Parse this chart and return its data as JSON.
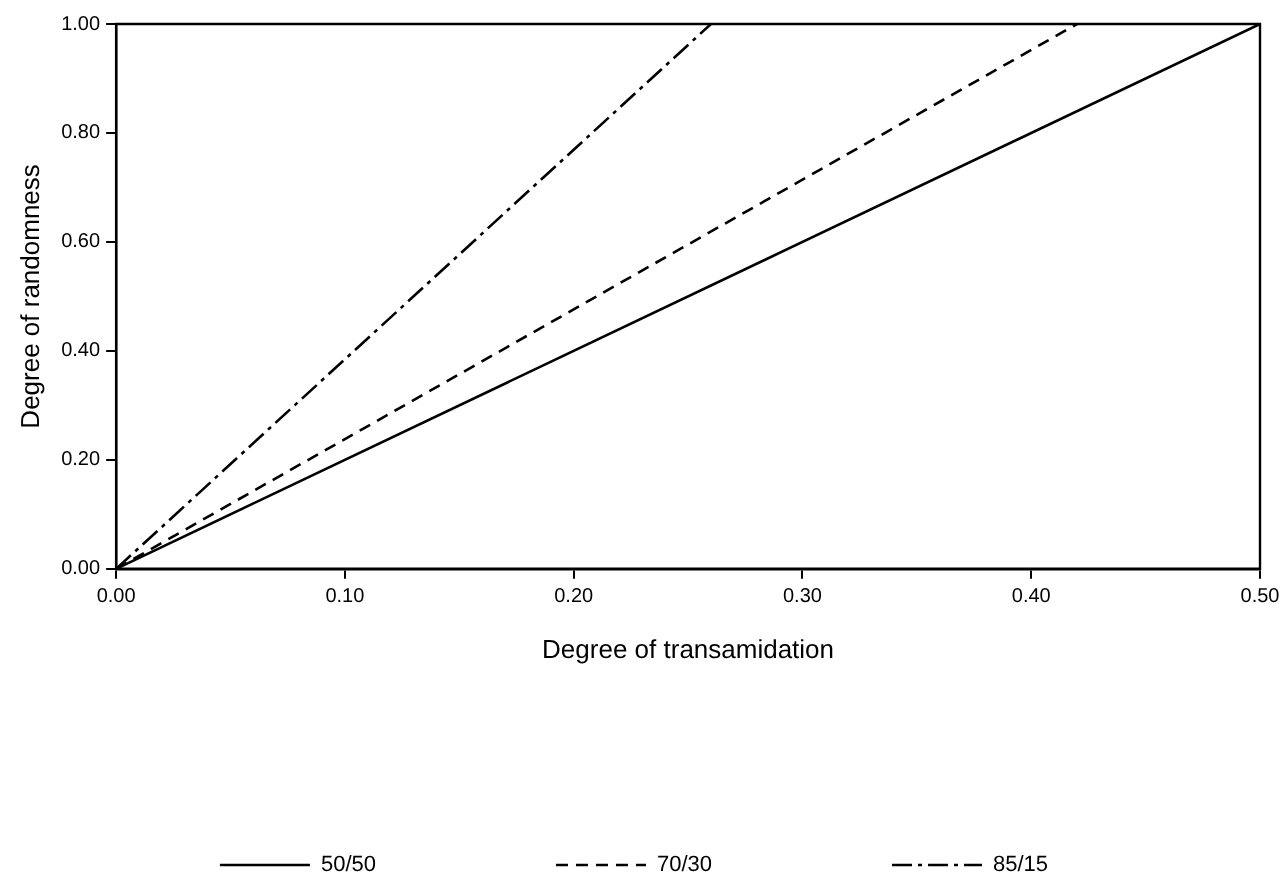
{
  "chart_data": {
    "type": "line",
    "xlabel": "Degree of transamidation",
    "ylabel": "Degree of randomness",
    "series": [
      {
        "name": "50/50",
        "color": "#000000",
        "line_style": "solid",
        "x": [
          0,
          0.5
        ],
        "values": [
          0,
          1
        ]
      },
      {
        "name": "70/30",
        "color": "#000000",
        "line_style": "dashed",
        "x": [
          0,
          0.42
        ],
        "values": [
          0,
          1
        ]
      },
      {
        "name": "85/15",
        "color": "#000000",
        "line_style": "dashdot",
        "x": [
          0,
          0.26
        ],
        "values": [
          0,
          1
        ]
      }
    ],
    "xlim": [
      0,
      0.5
    ],
    "xticks": [
      {
        "value": 0,
        "label": "0.00"
      },
      {
        "value": 0.1,
        "label": "0.10"
      },
      {
        "value": 0.2,
        "label": "0.20"
      },
      {
        "value": 0.3,
        "label": "0.30"
      },
      {
        "value": 0.4,
        "label": "0.40"
      },
      {
        "value": 0.5,
        "label": "0.50"
      }
    ],
    "ylim": [
      0,
      1
    ],
    "yticks": [
      {
        "value": 0,
        "label": "0.00"
      },
      {
        "value": 0.2,
        "label": "0.20"
      },
      {
        "value": 0.4,
        "label": "0.40"
      },
      {
        "value": 0.6,
        "label": "0.60"
      },
      {
        "value": 0.8,
        "label": "0.80"
      },
      {
        "value": 1,
        "label": "1.00"
      }
    ],
    "grid": false,
    "legend": "bottom"
  }
}
